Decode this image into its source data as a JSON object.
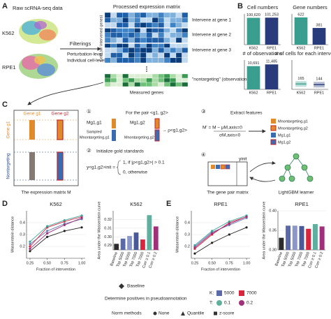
{
  "panels": {
    "a": {
      "letter": "A",
      "raw": "Raw scRNA-seq data",
      "k562": "K562",
      "rpe1": "RPE1",
      "filterings": "Filterings",
      "f1": "Perturbation-level",
      "f2": "Individual cell-level",
      "matrix_title": "Processed expression matrix",
      "cells": "Cells (w/ intervened genes)",
      "g1": "Intervene at gene 1",
      "g2": "Intervene at gene 2",
      "g3": "Intervene at gene 3",
      "nontargeting": "\"nontargeting\" (observational)",
      "measured": "Measured genes"
    },
    "b": {
      "letter": "B"
    },
    "c": {
      "letter": "C",
      "gene_g1": "Gene g1",
      "gene_g2": "Gene g2",
      "row_g1": "Gene g1",
      "row_nt": "Nontargeting",
      "caption": "The expression matrix M",
      "s1": "①",
      "s1_title": "For the pair <g1, g2>",
      "m11": "Mg1,g1",
      "m12": "Mg1,g2",
      "sampled": "Sampled",
      "mnt1": "Mnontargeting,g1",
      "mnt2": "Mnontargeting,g2",
      "rho": "→ ρ<g1,g2>",
      "s2": "②",
      "s2_title": "Initialize gold standards",
      "y_init": "y<g1,g2>init =",
      "case1": "1,  if |ρ<g1,g2>| > 0.1",
      "case0": "0,  otherwise",
      "s3": "③",
      "s3_title": "Extract features",
      "formula_num": "M' = M − μM,axis=0",
      "formula_den": "σM,axis=0",
      "feat1": "Mnontargeting,g1",
      "feat2": "Mnontargeting,g2",
      "feat3": "Mg1,g1",
      "feat4": "Mg1,g2",
      "s4": "④",
      "yinit": "yinit",
      "pair_matrix": "The gene pair matrix",
      "learner": "LightGBM learner"
    },
    "d": {
      "letter": "D"
    },
    "e": {
      "letter": "E"
    },
    "legend": {
      "baseline": "Baseline",
      "determine": "Determine positives in pseudoannotation",
      "k": "K:",
      "k1": "5000",
      "k2": "7000",
      "t": "T:",
      "t1": "0.1",
      "t2": "0.2",
      "norm": "Norm methods",
      "n1": "None",
      "n2": "Quantile",
      "n3": "z-score"
    }
  },
  "chart_data": [
    {
      "type": "bar",
      "title": "Cell numbers",
      "categories": [
        "K562",
        "RPE1"
      ],
      "values": [
        100620,
        101253
      ],
      "value_labels": [
        "100,620",
        "101,253"
      ],
      "colors": [
        "#3a9e8f",
        "#283c7c"
      ],
      "ylim": [
        0,
        115000
      ]
    },
    {
      "type": "bar",
      "title": "Gene numbers",
      "categories": [
        "K562",
        "RPE1"
      ],
      "values": [
        622,
        381
      ],
      "colors": [
        "#3a9e8f",
        "#283c7c"
      ],
      "ylim": [
        0,
        700
      ]
    },
    {
      "type": "bar",
      "title": "# of observations",
      "categories": [
        "K562",
        "RPE1"
      ],
      "values": [
        10691,
        11485
      ],
      "value_labels": [
        "10,691",
        "11,485"
      ],
      "colors": [
        "#3a9e8f",
        "#283c7c"
      ],
      "ylim": [
        0,
        13500
      ]
    },
    {
      "type": "box",
      "title": "# of cells for each intervention",
      "categories": [
        "K562",
        "RPE1"
      ],
      "values": [
        165,
        144
      ],
      "colors": [
        "#3a9e8f",
        "#283c7c"
      ],
      "ylim": [
        0,
        900
      ]
    },
    {
      "type": "line",
      "title": "K562",
      "xlabel": "Fraction of intervention",
      "ylabel": "Wasserstein distance",
      "x": [
        0.25,
        0.5,
        0.75,
        1.0
      ],
      "xlim": [
        0.2,
        1.05
      ],
      "xticks": [
        0.25,
        {
          "value": 0.5,
          "label": "0.50"
        },
        0.75,
        {
          "value": 1.0,
          "label": "1.00"
        }
      ],
      "ylim": [
        0.1,
        0.5
      ],
      "yticks": [
        0.2,
        0.3,
        0.4
      ],
      "series": [
        {
          "color": "#222222",
          "values": [
            0.16,
            0.28,
            0.33,
            0.36
          ]
        },
        {
          "color": "#6a7bb4",
          "values": [
            0.22,
            0.33,
            0.39,
            0.43
          ]
        },
        {
          "color": "#d7263d",
          "values": [
            0.2,
            0.36,
            0.41,
            0.45
          ]
        },
        {
          "color": "#3aa39a",
          "values": [
            0.24,
            0.37,
            0.42,
            0.46
          ]
        },
        {
          "color": "#a0307a",
          "values": [
            0.18,
            0.31,
            0.38,
            0.44
          ]
        }
      ]
    },
    {
      "type": "bar",
      "title": "K562",
      "ylabel": "Area under the Wasserstein curve",
      "categories": [
        "Baseline",
        "Top 5000",
        "Top 5000",
        "Top 7000",
        "Top 7000",
        "Corr ≥ 0.1",
        "Corr ≥ 0.2"
      ],
      "values": [
        0.292,
        0.298,
        0.301,
        0.305,
        0.297,
        0.325,
        0.312
      ],
      "colors": [
        "#2b2b2b",
        "#5a6aa8",
        "#8a97c8",
        "#4a5a98",
        "#d7263d",
        "#5fae9e",
        "#a0307a"
      ],
      "ylim": [
        0.285,
        0.33
      ],
      "yticks": [
        0.29,
        {
          "value": 0.3,
          "label": "0.30"
        },
        0.31,
        0.32
      ]
    },
    {
      "type": "line",
      "title": "RPE1",
      "xlabel": "Fraction of intervention",
      "ylabel": "Wasserstein distance",
      "x": [
        0.25,
        0.5,
        0.75,
        1.0
      ],
      "xlim": [
        0.2,
        1.05
      ],
      "xticks": [
        0.25,
        {
          "value": 0.5,
          "label": "0.50"
        },
        0.75,
        {
          "value": 1.0,
          "label": "1.00"
        }
      ],
      "ylim": [
        0.1,
        0.5
      ],
      "yticks": [
        0.2,
        0.3,
        0.4
      ],
      "series": [
        {
          "color": "#222222",
          "values": [
            0.14,
            0.23,
            0.3,
            0.36
          ]
        },
        {
          "color": "#6a7bb4",
          "values": [
            0.2,
            0.32,
            0.38,
            0.44
          ]
        },
        {
          "color": "#d7263d",
          "values": [
            0.18,
            0.3,
            0.4,
            0.45
          ]
        },
        {
          "color": "#3aa39a",
          "values": [
            0.21,
            0.33,
            0.41,
            0.46
          ]
        },
        {
          "color": "#a0307a",
          "values": [
            0.19,
            0.31,
            0.39,
            0.45
          ]
        }
      ]
    },
    {
      "type": "bar",
      "title": "RPE1",
      "ylabel": "Area under the Wasserstein curve",
      "categories": [
        "Baseline",
        "Top 5000",
        "Top 5000",
        "Top 7000",
        "Top 7000",
        "Corr ≥ 0.1",
        "Corr ≥ 0.2"
      ],
      "values": [
        0.331,
        0.362,
        0.362,
        0.361,
        0.354,
        0.366,
        0.36
      ],
      "colors": [
        "#2b2b2b",
        "#5a6aa8",
        "#8a97c8",
        "#4a5a98",
        "#d7263d",
        "#5fae9e",
        "#a0307a"
      ],
      "ylim": [
        0.3,
        0.4
      ],
      "yticks": [
        {
          "value": 0.3,
          "label": "0.30"
        },
        0.35,
        {
          "value": 0.4,
          "label": "0.40"
        }
      ]
    }
  ]
}
